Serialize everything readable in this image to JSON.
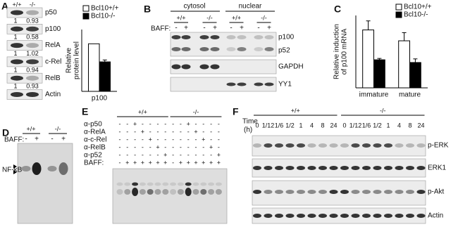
{
  "panel_labels": [
    "A",
    "B",
    "C",
    "D",
    "E",
    "F"
  ],
  "panel_a": {
    "genotypes": [
      "+/+",
      "-/-"
    ],
    "rows": [
      {
        "label": "p50",
        "quant": [
          1,
          0.93
        ]
      },
      {
        "label": "p100",
        "quant": [
          1,
          0.58
        ]
      },
      {
        "label": "RelA",
        "quant": [
          1,
          1.02
        ]
      },
      {
        "label": "c-Rel",
        "quant": [
          1,
          0.94
        ]
      },
      {
        "label": "RelB",
        "quant": [
          1,
          0.93
        ]
      },
      {
        "label": "Actin"
      }
    ]
  },
  "panel_b": {
    "fractions": [
      "cytosol",
      "nuclear"
    ],
    "genotypes": [
      "+/+",
      "-/-",
      "+/+",
      "-/-"
    ],
    "baff_label": "BAFF:",
    "baff": [
      "-",
      "+",
      "-",
      "+",
      "-",
      "+",
      "-",
      "+"
    ],
    "rows": [
      "p100",
      "p52",
      "GAPDH",
      "YY1"
    ]
  },
  "panel_d": {
    "genotypes": [
      "+/+",
      "-/-"
    ],
    "baff_label": "BAFF:",
    "baff": [
      "-",
      "+",
      "-",
      "+"
    ],
    "band_label": "NF-κB"
  },
  "panel_e": {
    "genotypes": [
      "+/+",
      "-/-"
    ],
    "rows": [
      {
        "label": "α-p50",
        "signs": [
          "-",
          "-",
          "+",
          "-",
          "-",
          "-",
          "-",
          "-",
          "-",
          "+",
          "-",
          "-",
          "-",
          "-"
        ]
      },
      {
        "label": "α-RelA",
        "signs": [
          "-",
          "-",
          "-",
          "+",
          "-",
          "-",
          "-",
          "-",
          "-",
          "-",
          "+",
          "-",
          "-",
          "-"
        ]
      },
      {
        "label": "α-c-Rel",
        "signs": [
          "-",
          "-",
          "-",
          "-",
          "+",
          "-",
          "-",
          "-",
          "-",
          "-",
          "-",
          "+",
          "-",
          "-"
        ]
      },
      {
        "label": "α-RelB",
        "signs": [
          "-",
          "-",
          "-",
          "-",
          "-",
          "+",
          "-",
          "-",
          "-",
          "-",
          "-",
          "-",
          "+",
          "-"
        ]
      },
      {
        "label": "α-p52",
        "signs": [
          "-",
          "-",
          "-",
          "-",
          "-",
          "-",
          "+",
          "-",
          "-",
          "-",
          "-",
          "-",
          "-",
          "+"
        ]
      },
      {
        "label": "BAFF:",
        "signs": [
          "-",
          "+",
          "+",
          "+",
          "+",
          "+",
          "+",
          "-",
          "+",
          "+",
          "+",
          "+",
          "+",
          "+"
        ]
      }
    ]
  },
  "panel_f": {
    "time_label": "Time",
    "time_unit": "(h)",
    "genotypes": [
      "+/+",
      "-/-"
    ],
    "times": [
      "0",
      "1/12",
      "1/6",
      "1/2",
      "1",
      "4",
      "8",
      "24",
      "0",
      "1/12",
      "1/6",
      "1/2",
      "1",
      "4",
      "8",
      "24"
    ],
    "rows": [
      "p-ERK",
      "ERK1",
      "p-Akt",
      "Actin"
    ]
  },
  "chart_data": [
    {
      "type": "bar",
      "y_label": [
        "Relative",
        "protein level"
      ],
      "categories": [
        "p100"
      ],
      "ylim": [
        0,
        1.3
      ],
      "series": [
        {
          "name": "Bcl10+/+",
          "color": "#ffffff",
          "values": [
            1
          ]
        },
        {
          "name": "Bcl10-/-",
          "color": "#000000",
          "values": [
            0.62
          ],
          "errors": [
            0.04
          ]
        }
      ]
    },
    {
      "type": "bar",
      "y_label": [
        "Relative induction",
        "of p100 mRNA"
      ],
      "categories": [
        "immature",
        "mature"
      ],
      "ylim": [
        0,
        8
      ],
      "series": [
        {
          "name": "Bcl10+/+",
          "color": "#ffffff",
          "values": [
            6.4,
            5.2
          ],
          "errors": [
            1.0,
            0.9
          ]
        },
        {
          "name": "Bcl10-/-",
          "color": "#000000",
          "values": [
            3.1,
            2.8
          ],
          "errors": [
            0.15,
            0.4
          ]
        }
      ]
    }
  ]
}
